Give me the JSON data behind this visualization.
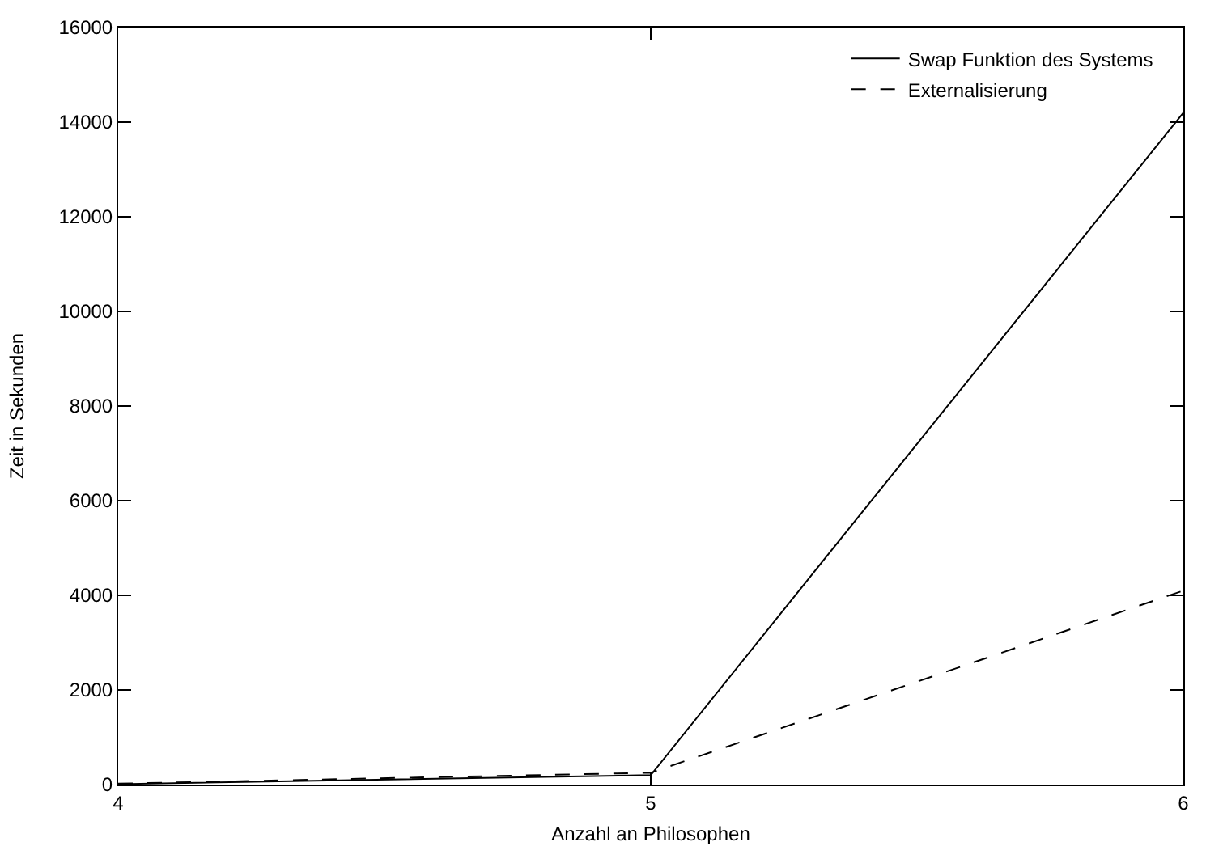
{
  "chart_data": {
    "type": "line",
    "xlabel": "Anzahl an Philosophen",
    "ylabel": "Zeit in Sekunden",
    "x": [
      4,
      5,
      6
    ],
    "series": [
      {
        "name": "Swap Funktion des Systems",
        "color": "#000000",
        "values": [
          10,
          200,
          14200
        ],
        "line_style": "solid"
      },
      {
        "name": "Externalisierung",
        "color": "#000000",
        "values": [
          20,
          250,
          4100
        ],
        "line_style": "dashed"
      }
    ],
    "xlim": [
      4,
      6
    ],
    "xticks": [
      4,
      5,
      6
    ],
    "ylim": [
      0,
      16000
    ],
    "yticks": [
      0,
      2000,
      4000,
      6000,
      8000,
      10000,
      12000,
      14000,
      16000
    ],
    "grid": false,
    "legend": "top right",
    "marker": "none"
  }
}
